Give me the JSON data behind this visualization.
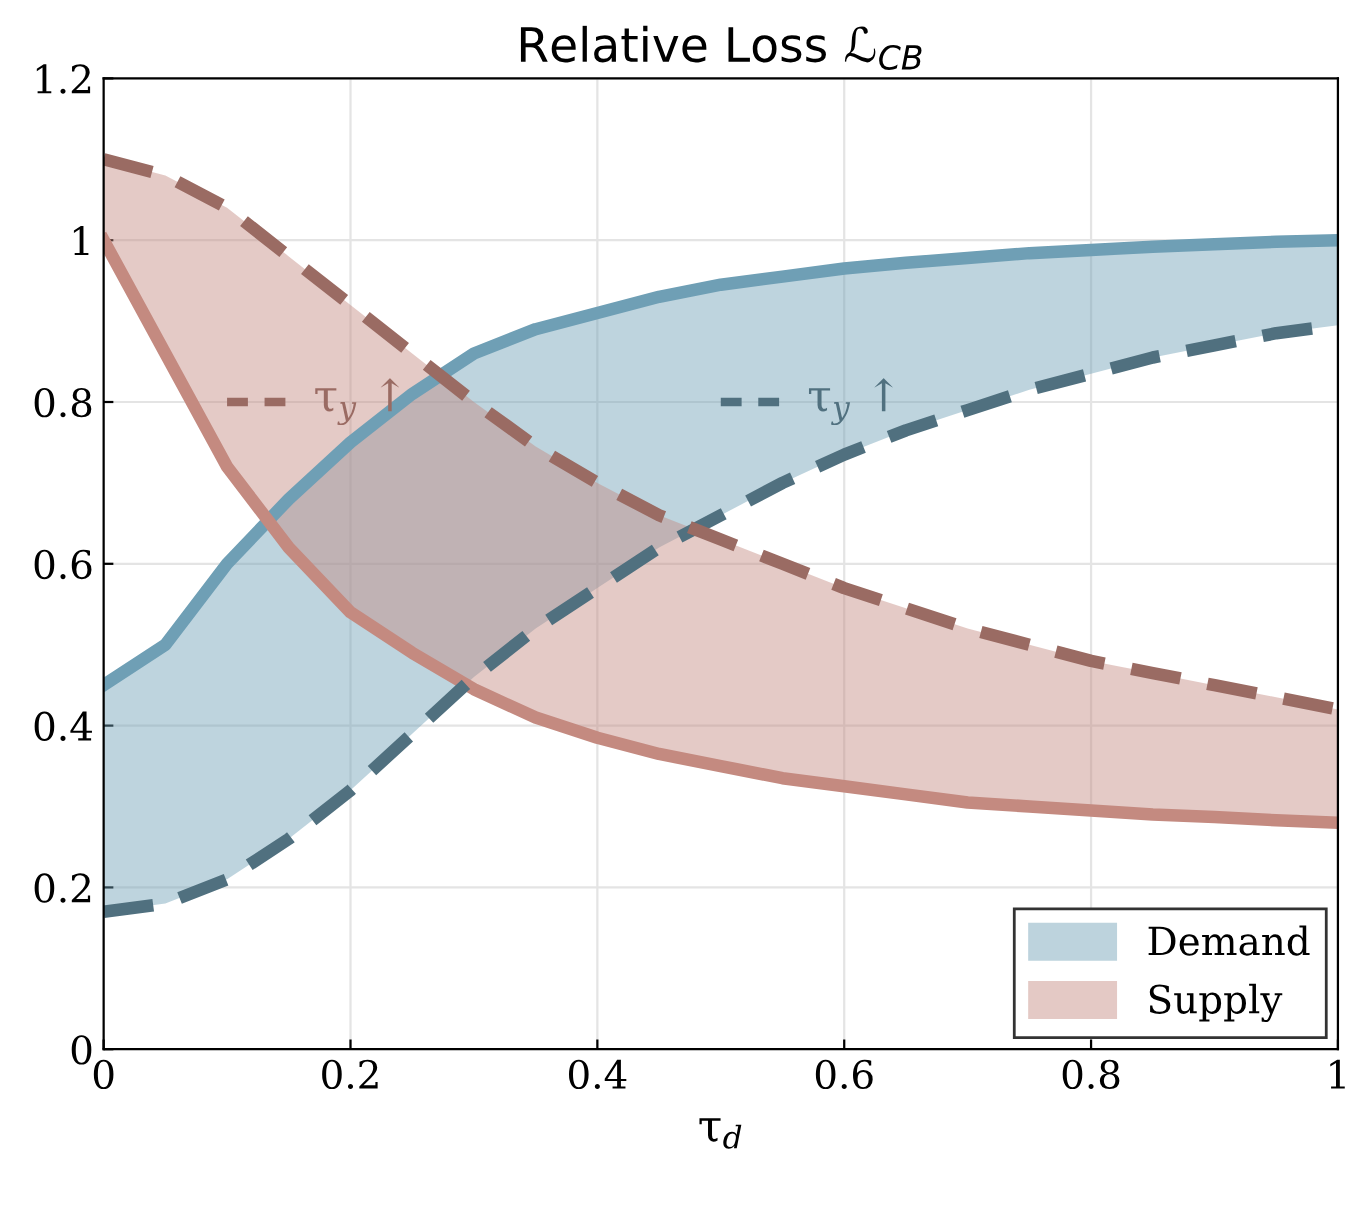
{
  "chart_data": {
    "type": "line",
    "title": "Relative Loss ℒ$_{CB}$",
    "xlabel": "τ$_{d}$",
    "x": [
      0,
      0.05,
      0.1,
      0.15,
      0.2,
      0.25,
      0.3,
      0.35,
      0.4,
      0.45,
      0.5,
      0.55,
      0.6,
      0.65,
      0.7,
      0.75,
      0.8,
      0.85,
      0.9,
      0.95,
      1
    ],
    "series": [
      {
        "name": "Demand",
        "color": "#6f9fb5",
        "line_style": "solid",
        "values": [
          0.45,
          0.5,
          0.6,
          0.68,
          0.75,
          0.81,
          0.86,
          0.89,
          0.91,
          0.93,
          0.945,
          0.955,
          0.965,
          0.972,
          0.978,
          0.984,
          0.988,
          0.992,
          0.995,
          0.998,
          1.0
        ],
        "lower": [
          0.17,
          0.18,
          0.21,
          0.26,
          0.32,
          0.39,
          0.46,
          0.52,
          0.57,
          0.62,
          0.66,
          0.7,
          0.735,
          0.765,
          0.79,
          0.815,
          0.835,
          0.855,
          0.87,
          0.885,
          0.895
        ],
        "upper": [
          0.45,
          0.5,
          0.6,
          0.68,
          0.75,
          0.81,
          0.86,
          0.89,
          0.91,
          0.93,
          0.945,
          0.955,
          0.965,
          0.972,
          0.978,
          0.984,
          0.988,
          0.992,
          0.995,
          0.998,
          1.0
        ]
      },
      {
        "name": "Supply",
        "color": "#c48a80",
        "line_style": "solid",
        "values": [
          1.0,
          0.86,
          0.72,
          0.62,
          0.54,
          0.49,
          0.445,
          0.41,
          0.385,
          0.365,
          0.35,
          0.335,
          0.325,
          0.315,
          0.305,
          0.3,
          0.295,
          0.29,
          0.287,
          0.283,
          0.28
        ],
        "lower": [
          1.0,
          0.86,
          0.72,
          0.62,
          0.54,
          0.49,
          0.445,
          0.41,
          0.385,
          0.365,
          0.35,
          0.335,
          0.325,
          0.315,
          0.305,
          0.3,
          0.295,
          0.29,
          0.287,
          0.283,
          0.28
        ],
        "upper": [
          1.1,
          1.08,
          1.04,
          0.98,
          0.92,
          0.86,
          0.8,
          0.745,
          0.7,
          0.66,
          0.63,
          0.6,
          0.57,
          0.545,
          0.52,
          0.5,
          0.48,
          0.465,
          0.45,
          0.435,
          0.42
        ]
      },
      {
        "color": "#50707f",
        "line_style": "dashed",
        "values": [
          0.17,
          0.18,
          0.21,
          0.26,
          0.32,
          0.39,
          0.46,
          0.52,
          0.57,
          0.62,
          0.66,
          0.7,
          0.735,
          0.765,
          0.79,
          0.815,
          0.835,
          0.855,
          0.87,
          0.885,
          0.895
        ]
      },
      {
        "color": "#9a6b63",
        "line_style": "dashed",
        "values": [
          1.1,
          1.08,
          1.04,
          0.98,
          0.92,
          0.86,
          0.8,
          0.745,
          0.7,
          0.66,
          0.63,
          0.6,
          0.57,
          0.545,
          0.52,
          0.5,
          0.48,
          0.465,
          0.45,
          0.435,
          0.42
        ]
      }
    ],
    "annotations": [
      "τ$_{y}$ ↑",
      "τ$_{y}$ ↑"
    ],
    "xlim": [
      0,
      1
    ],
    "xticks": [
      0,
      0.2,
      0.4,
      0.6,
      0.8,
      1
    ],
    "ylim": [
      0,
      1.2
    ],
    "yticks": [
      0,
      0.2,
      0.4,
      0.6,
      0.8,
      1,
      1.2
    ],
    "grid": true,
    "legend": "bottom right"
  }
}
